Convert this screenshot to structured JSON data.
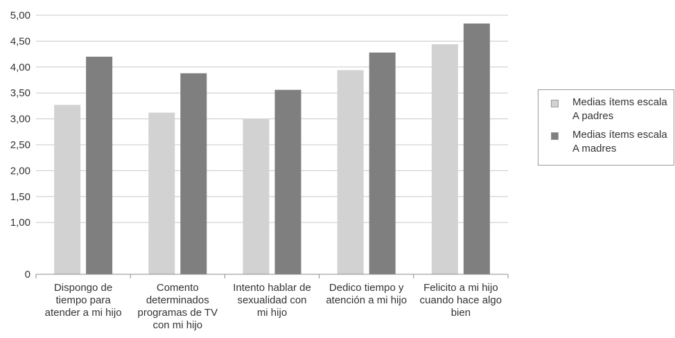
{
  "chart_data": {
    "type": "bar",
    "categories": [
      "Dispongo de tiempo para atender a mi hijo",
      "Comento determinados programas de TV con mi hijo",
      "Intento hablar de sexualidad con mi hijo",
      "Dedico tiempo y atención a mi hijo",
      "Felicito a mi hijo cuando hace algo bien"
    ],
    "category_label_lines": [
      [
        "Dispongo de",
        "tiempo para",
        "atender a mi hijo"
      ],
      [
        "Comento",
        "determinados",
        "programas de TV",
        "con mi hijo"
      ],
      [
        "Intento hablar de",
        "sexualidad con",
        "mi hijo"
      ],
      [
        "Dedico tiempo y",
        "atención a mi hijo"
      ],
      [
        "Felicito a mi hijo",
        "cuando hace algo",
        "bien"
      ]
    ],
    "series": [
      {
        "name": "Medias ítems escala A padres",
        "name_lines": [
          "Medias ítems escala",
          "A padres"
        ],
        "color": "#d2d2d2",
        "values": [
          3.27,
          3.12,
          3.0,
          3.94,
          4.44
        ]
      },
      {
        "name": "Medias ítems escala A madres",
        "name_lines": [
          "Medias ítems escala",
          "A madres"
        ],
        "color": "#7f7f7f",
        "values": [
          4.2,
          3.88,
          3.56,
          4.28,
          4.84
        ]
      }
    ],
    "yticks": [
      "0",
      "1,00",
      "1,50",
      "2,00",
      "2,50",
      "3,00",
      "3,50",
      "4,00",
      "4,50",
      "5,00"
    ],
    "ylim": [
      0,
      5
    ],
    "ytick_values": [
      0,
      1,
      1.5,
      2,
      2.5,
      3,
      3.5,
      4,
      4.5,
      5
    ],
    "title": "",
    "xlabel": "",
    "ylabel": "",
    "grid": true,
    "legend_position": "right"
  }
}
